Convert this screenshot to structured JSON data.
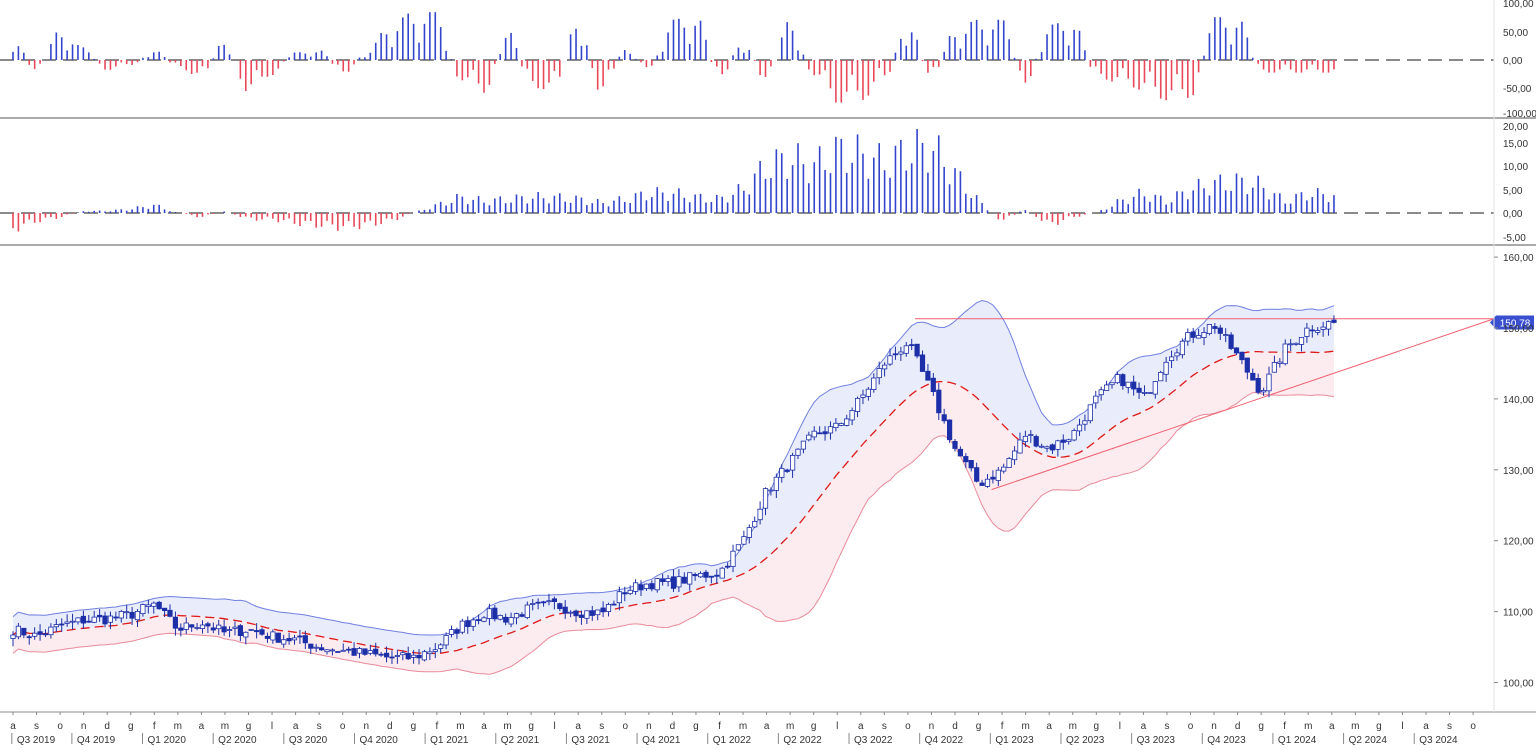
{
  "colors": {
    "bull": "#3344cc",
    "bear": "#e8485a",
    "candle_up_fill": "#ffffff",
    "candle_down_fill": "#1c2fa8",
    "band_upper": "#6f7fe0",
    "band_lower": "#e88a9a",
    "band_upper_fill": "#e9ecfb",
    "band_lower_fill": "#fcecef",
    "ma_line": "#e01818",
    "trend_line": "#f06070",
    "price_badge": "#3a4fd0",
    "axis_text": "#333333",
    "grid_line": "#c8c8c8",
    "zero_line": "#444444"
  },
  "oscillator_1": {
    "scale_labels": [
      "100,00",
      "50,00",
      "0,00",
      "-50,00",
      "-100,00"
    ]
  },
  "oscillator_2": {
    "scale_labels": [
      "20,00",
      "15,00",
      "10,00",
      "5,00",
      "0,00",
      "-5,00"
    ]
  },
  "price_panel": {
    "scale_labels": [
      "160,00",
      "150,00",
      "140,00",
      "130,00",
      "120,00",
      "110,00",
      "100,00"
    ],
    "last_price": "150,78"
  },
  "time_axis": {
    "month_letters": [
      "a",
      "s",
      "o",
      "n",
      "d",
      "g",
      "f",
      "m",
      "a",
      "m",
      "g",
      "l",
      "a",
      "s",
      "o",
      "n",
      "d",
      "g",
      "f",
      "m",
      "a",
      "m",
      "g",
      "l",
      "a",
      "s",
      "o",
      "n",
      "d",
      "g",
      "f",
      "m",
      "a",
      "m",
      "g",
      "l",
      "a",
      "s",
      "o",
      "n",
      "d",
      "g",
      "f",
      "m",
      "a",
      "m",
      "g",
      "l",
      "a",
      "s",
      "o",
      "n",
      "d",
      "g",
      "f",
      "m",
      "a",
      "m",
      "g",
      "l",
      "a",
      "s",
      "o"
    ],
    "quarters": [
      "Q3 2019",
      "Q4 2019",
      "Q1 2020",
      "Q2 2020",
      "Q3 2020",
      "Q4 2020",
      "Q1 2021",
      "Q2 2021",
      "Q3 2021",
      "Q4 2021",
      "Q1 2022",
      "Q2 2022",
      "Q3 2022",
      "Q4 2022",
      "Q1 2023",
      "Q2 2023",
      "Q3 2023",
      "Q4 2023",
      "Q1 2024",
      "Q2 2024",
      "Q3 2024"
    ]
  },
  "chart_data": [
    {
      "type": "candlestick",
      "panel": "price",
      "ylim": [
        96,
        160
      ],
      "x_range": [
        "2019-08",
        "2024-10"
      ],
      "last_value": 150.78,
      "overlays": [
        "upper band",
        "lower band",
        "moving average (dashed)",
        "horizontal resistance 151.3",
        "rising trendline"
      ],
      "close_path_by_month": [
        {
          "m": "2019-08",
          "close": 107.5
        },
        {
          "m": "2019-09",
          "close": 106.5
        },
        {
          "m": "2019-10",
          "close": 108.0
        },
        {
          "m": "2019-11",
          "close": 108.8
        },
        {
          "m": "2019-12",
          "close": 109.0
        },
        {
          "m": "2020-01",
          "close": 109.6
        },
        {
          "m": "2020-02",
          "close": 111.0
        },
        {
          "m": "2020-03",
          "close": 107.5
        },
        {
          "m": "2020-04",
          "close": 108.5
        },
        {
          "m": "2020-05",
          "close": 107.0
        },
        {
          "m": "2020-06",
          "close": 107.5
        },
        {
          "m": "2020-07",
          "close": 106.5
        },
        {
          "m": "2020-08",
          "close": 106.0
        },
        {
          "m": "2020-09",
          "close": 105.0
        },
        {
          "m": "2020-10",
          "close": 104.5
        },
        {
          "m": "2020-11",
          "close": 104.0
        },
        {
          "m": "2020-12",
          "close": 103.5
        },
        {
          "m": "2021-01",
          "close": 103.5
        },
        {
          "m": "2021-02",
          "close": 105.0
        },
        {
          "m": "2021-03",
          "close": 108.0
        },
        {
          "m": "2021-04",
          "close": 109.8
        },
        {
          "m": "2021-05",
          "close": 109.0
        },
        {
          "m": "2021-06",
          "close": 110.5
        },
        {
          "m": "2021-07",
          "close": 111.0
        },
        {
          "m": "2021-08",
          "close": 110.0
        },
        {
          "m": "2021-09",
          "close": 109.8
        },
        {
          "m": "2021-10",
          "close": 113.0
        },
        {
          "m": "2021-11",
          "close": 114.0
        },
        {
          "m": "2021-12",
          "close": 114.0
        },
        {
          "m": "2022-01",
          "close": 115.0
        },
        {
          "m": "2022-02",
          "close": 115.5
        },
        {
          "m": "2022-03",
          "close": 120.0
        },
        {
          "m": "2022-04",
          "close": 127.0
        },
        {
          "m": "2022-05",
          "close": 131.0
        },
        {
          "m": "2022-06",
          "close": 135.0
        },
        {
          "m": "2022-07",
          "close": 136.0
        },
        {
          "m": "2022-08",
          "close": 140.0
        },
        {
          "m": "2022-09",
          "close": 145.0
        },
        {
          "m": "2022-10",
          "close": 148.0
        },
        {
          "m": "2022-11",
          "close": 141.0
        },
        {
          "m": "2022-12",
          "close": 133.0
        },
        {
          "m": "2023-01",
          "close": 128.0
        },
        {
          "m": "2023-02",
          "close": 130.0
        },
        {
          "m": "2023-03",
          "close": 135.0
        },
        {
          "m": "2023-04",
          "close": 133.0
        },
        {
          "m": "2023-05",
          "close": 135.0
        },
        {
          "m": "2023-06",
          "close": 140.0
        },
        {
          "m": "2023-07",
          "close": 143.0
        },
        {
          "m": "2023-08",
          "close": 140.0
        },
        {
          "m": "2023-09",
          "close": 146.0
        },
        {
          "m": "2023-10",
          "close": 149.0
        },
        {
          "m": "2023-11",
          "close": 150.5
        },
        {
          "m": "2023-12",
          "close": 146.0
        },
        {
          "m": "2024-01",
          "close": 141.0
        },
        {
          "m": "2024-02",
          "close": 147.0
        },
        {
          "m": "2024-03",
          "close": 150.0
        },
        {
          "m": "2024-04",
          "close": 150.78
        }
      ]
    },
    {
      "type": "bar",
      "panel": "oscillator_1",
      "ylim": [
        -105,
        105
      ],
      "reference_line": 0,
      "colors": {
        "positive": "bull",
        "negative": "bear"
      },
      "profile": [
        {
          "m": "2019-08",
          "v": 45
        },
        {
          "m": "2019-09",
          "v": -25
        },
        {
          "m": "2019-10",
          "v": 60
        },
        {
          "m": "2019-11",
          "v": 25
        },
        {
          "m": "2019-12",
          "v": -20
        },
        {
          "m": "2020-01",
          "v": -10
        },
        {
          "m": "2020-02",
          "v": 20
        },
        {
          "m": "2020-03",
          "v": -15
        },
        {
          "m": "2020-04",
          "v": -35
        },
        {
          "m": "2020-05",
          "v": 40
        },
        {
          "m": "2020-06",
          "v": -65
        },
        {
          "m": "2020-07",
          "v": -30
        },
        {
          "m": "2020-08",
          "v": 15
        },
        {
          "m": "2020-09",
          "v": 20
        },
        {
          "m": "2020-10",
          "v": -30
        },
        {
          "m": "2020-11",
          "v": 15
        },
        {
          "m": "2020-12",
          "v": 70
        },
        {
          "m": "2021-01",
          "v": 95
        },
        {
          "m": "2021-02",
          "v": 95
        },
        {
          "m": "2021-03",
          "v": -40
        },
        {
          "m": "2021-04",
          "v": -65
        },
        {
          "m": "2021-05",
          "v": 60
        },
        {
          "m": "2021-06",
          "v": -55
        },
        {
          "m": "2021-07",
          "v": -60
        },
        {
          "m": "2021-08",
          "v": 85
        },
        {
          "m": "2021-09",
          "v": -70
        },
        {
          "m": "2021-10",
          "v": 20
        },
        {
          "m": "2021-11",
          "v": -15
        },
        {
          "m": "2021-12",
          "v": 80
        },
        {
          "m": "2022-01",
          "v": 90
        },
        {
          "m": "2022-02",
          "v": -40
        },
        {
          "m": "2022-03",
          "v": 40
        },
        {
          "m": "2022-04",
          "v": -45
        },
        {
          "m": "2022-05",
          "v": 80
        },
        {
          "m": "2022-06",
          "v": -30
        },
        {
          "m": "2022-07",
          "v": -85
        },
        {
          "m": "2022-08",
          "v": -80
        },
        {
          "m": "2022-09",
          "v": -40
        },
        {
          "m": "2022-10",
          "v": 80
        },
        {
          "m": "2022-11",
          "v": -40
        },
        {
          "m": "2022-12",
          "v": 60
        },
        {
          "m": "2023-01",
          "v": 80
        },
        {
          "m": "2023-02",
          "v": 80
        },
        {
          "m": "2023-03",
          "v": -45
        },
        {
          "m": "2023-04",
          "v": 70
        },
        {
          "m": "2023-05",
          "v": 80
        },
        {
          "m": "2023-06",
          "v": -35
        },
        {
          "m": "2023-07",
          "v": -45
        },
        {
          "m": "2023-08",
          "v": -60
        },
        {
          "m": "2023-09",
          "v": -80
        },
        {
          "m": "2023-10",
          "v": -75
        },
        {
          "m": "2023-11",
          "v": 85
        },
        {
          "m": "2023-12",
          "v": 85
        },
        {
          "m": "2024-01",
          "v": -25
        }
      ]
    },
    {
      "type": "bar",
      "panel": "oscillator_2",
      "ylim": [
        -7,
        21
      ],
      "reference_line": 0,
      "colors": {
        "positive": "bull",
        "negative": "bear"
      },
      "profile": [
        {
          "m": "2019-08",
          "v": -4
        },
        {
          "m": "2019-09",
          "v": -2
        },
        {
          "m": "2019-10",
          "v": -1
        },
        {
          "m": "2019-11",
          "v": 0.5
        },
        {
          "m": "2019-12",
          "v": 0.5
        },
        {
          "m": "2020-01",
          "v": 1
        },
        {
          "m": "2020-02",
          "v": 2
        },
        {
          "m": "2020-03",
          "v": 0
        },
        {
          "m": "2020-04",
          "v": -1
        },
        {
          "m": "2020-05",
          "v": 0.5
        },
        {
          "m": "2020-06",
          "v": -1.5
        },
        {
          "m": "2020-07",
          "v": -1.5
        },
        {
          "m": "2020-08",
          "v": -2.5
        },
        {
          "m": "2020-09",
          "v": -3
        },
        {
          "m": "2020-10",
          "v": -3.5
        },
        {
          "m": "2020-11",
          "v": -3
        },
        {
          "m": "2020-12",
          "v": -2
        },
        {
          "m": "2021-01",
          "v": 0
        },
        {
          "m": "2021-02",
          "v": 2
        },
        {
          "m": "2021-03",
          "v": 4
        },
        {
          "m": "2021-04",
          "v": 3
        },
        {
          "m": "2021-05",
          "v": 3.5
        },
        {
          "m": "2021-06",
          "v": 4
        },
        {
          "m": "2021-07",
          "v": 4
        },
        {
          "m": "2021-08",
          "v": 3.5
        },
        {
          "m": "2021-09",
          "v": 2.5
        },
        {
          "m": "2021-10",
          "v": 3.5
        },
        {
          "m": "2021-11",
          "v": 5
        },
        {
          "m": "2021-12",
          "v": 5
        },
        {
          "m": "2022-01",
          "v": 4
        },
        {
          "m": "2022-02",
          "v": 3.5
        },
        {
          "m": "2022-03",
          "v": 6
        },
        {
          "m": "2022-04",
          "v": 12
        },
        {
          "m": "2022-05",
          "v": 14
        },
        {
          "m": "2022-06",
          "v": 12
        },
        {
          "m": "2022-07",
          "v": 16
        },
        {
          "m": "2022-08",
          "v": 15
        },
        {
          "m": "2022-09",
          "v": 13
        },
        {
          "m": "2022-10",
          "v": 16
        },
        {
          "m": "2022-11",
          "v": 17
        },
        {
          "m": "2022-12",
          "v": 10
        },
        {
          "m": "2023-01",
          "v": 3
        },
        {
          "m": "2023-02",
          "v": -2
        },
        {
          "m": "2023-03",
          "v": 1
        },
        {
          "m": "2023-04",
          "v": -3
        },
        {
          "m": "2023-05",
          "v": -1
        },
        {
          "m": "2023-06",
          "v": 0
        },
        {
          "m": "2023-07",
          "v": 3
        },
        {
          "m": "2023-08",
          "v": 5
        },
        {
          "m": "2023-09",
          "v": 3
        },
        {
          "m": "2023-10",
          "v": 6
        },
        {
          "m": "2023-11",
          "v": 7.5
        },
        {
          "m": "2023-12",
          "v": 8
        },
        {
          "m": "2024-01",
          "v": 7
        },
        {
          "m": "2024-02",
          "v": 3
        },
        {
          "m": "2024-03",
          "v": 5
        },
        {
          "m": "2024-04",
          "v": 4.5
        }
      ]
    }
  ]
}
